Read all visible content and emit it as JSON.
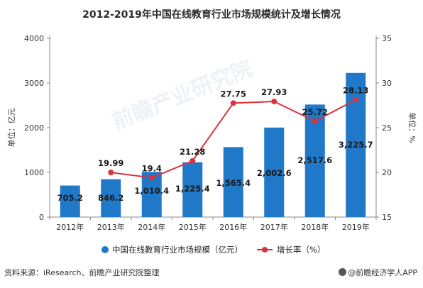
{
  "page": {
    "source_label": "资料来源：",
    "source_text": "iResearch、前瞻产业研究院整理",
    "brand": "@前瞻经济学人APP",
    "watermark": "前瞻产业研究院"
  },
  "chart_data": {
    "type": "bar",
    "title": "2012-2019年中国在线教育行业市场规模统计及增长情况",
    "categories": [
      "2012年",
      "2013年",
      "2014年",
      "2015年",
      "2016年",
      "2017年",
      "2018年",
      "2019年"
    ],
    "series": [
      {
        "name": "中国在线教育行业市场规模（亿元）",
        "type": "bar",
        "axis": "left",
        "values": [
          705.2,
          846.2,
          1010.4,
          1225.4,
          1565.4,
          2002.6,
          2517.6,
          3225.7
        ],
        "labels": [
          "705.2",
          "846.2",
          "1,010.4",
          "1,225.4",
          "1,565.4",
          "2,002.6",
          "2,517.6",
          "3,225.7"
        ],
        "color": "#1f78c8"
      },
      {
        "name": "增长率（%）",
        "type": "line",
        "axis": "right",
        "values": [
          null,
          19.99,
          19.4,
          21.28,
          27.75,
          27.93,
          25.72,
          28.13
        ],
        "labels": [
          "",
          "19.99",
          "19.4",
          "21.28",
          "27.75",
          "27.93",
          "25.72",
          "28.13"
        ],
        "color": "#d9333f"
      }
    ],
    "y_left": {
      "label": "单位：亿元",
      "ylim": [
        0,
        4000
      ],
      "ticks": [
        0,
        1000,
        2000,
        3000,
        4000
      ]
    },
    "y_right": {
      "label": "单位：%",
      "ylim": [
        15,
        35
      ],
      "ticks": [
        15,
        20,
        25,
        30,
        35
      ]
    },
    "grid": false,
    "legend_position": "bottom"
  }
}
